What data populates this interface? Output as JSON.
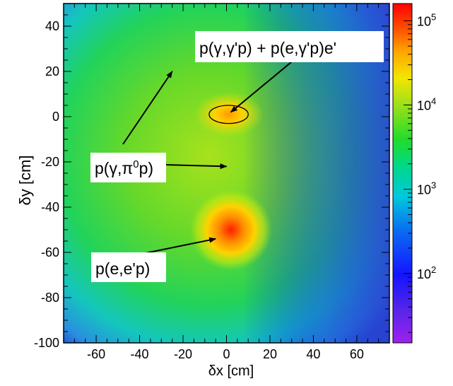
{
  "chart_data": {
    "type": "heatmap",
    "xlabel": "δx [cm]",
    "ylabel": "δy [cm]",
    "xlim": [
      -75,
      75
    ],
    "ylim": [
      -100,
      50
    ],
    "x_ticks": [
      "-60",
      "-40",
      "-20",
      "0",
      "20",
      "40",
      "60"
    ],
    "y_ticks": [
      "40",
      "20",
      "0",
      "-20",
      "-40",
      "-60",
      "-80",
      "-100"
    ],
    "color_scale": {
      "scale": "log",
      "range": [
        15,
        160000
      ],
      "ticks": [
        {
          "value": 100,
          "base": "10",
          "exp": "2"
        },
        {
          "value": 1000,
          "base": "10",
          "exp": "3"
        },
        {
          "value": 10000,
          "base": "10",
          "exp": "4"
        },
        {
          "value": 100000,
          "base": "10",
          "exp": "5"
        }
      ]
    },
    "peaks": [
      {
        "x": 1,
        "y": 1,
        "level": 20000
      },
      {
        "x": 2,
        "y": -50,
        "level": 80000
      }
    ],
    "annotations": [
      {
        "text_main": "p(γ,γ'p) + p(e,γ'p)e'",
        "arrow_to": [
          2,
          2
        ]
      },
      {
        "text_main": "p(γ,π",
        "sup": "0",
        "text_tail": "p)",
        "arrow_to": [
          [
            -25,
            20
          ],
          [
            0,
            -22
          ]
        ]
      },
      {
        "text_main": "p(e,e'p)",
        "arrow_to": [
          -5,
          -54
        ]
      }
    ],
    "highlight_ellipse": {
      "center": [
        1,
        1
      ],
      "rx": 9,
      "ry": 4
    }
  }
}
